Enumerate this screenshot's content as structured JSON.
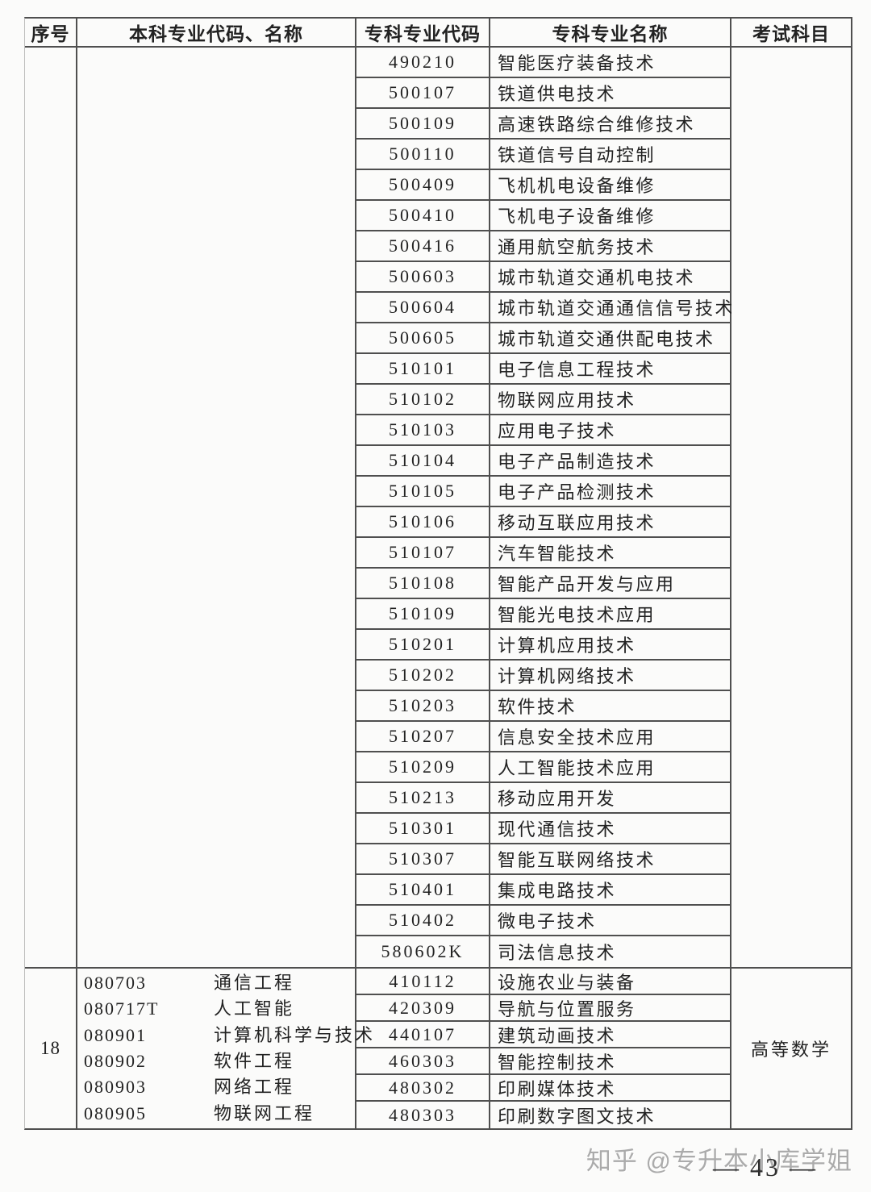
{
  "colors": {
    "bg": "#fbfbfa",
    "border": "#4f4f4f",
    "text": "#222222",
    "watermark": "#ababab",
    "pageno": "#2e2e2e"
  },
  "table": {
    "headers": [
      "序号",
      "本科专业代码、名称",
      "专科专业代码",
      "专科专业名称",
      "考试科目"
    ]
  },
  "sections": [
    {
      "serial": "",
      "exam_subject": "",
      "undergraduate_majors": [],
      "rows": [
        {
          "code": "490210",
          "name": "智能医疗装备技术"
        },
        {
          "code": "500107",
          "name": "铁道供电技术"
        },
        {
          "code": "500109",
          "name": "高速铁路综合维修技术"
        },
        {
          "code": "500110",
          "name": "铁道信号自动控制"
        },
        {
          "code": "500409",
          "name": "飞机机电设备维修"
        },
        {
          "code": "500410",
          "name": "飞机电子设备维修"
        },
        {
          "code": "500416",
          "name": "通用航空航务技术"
        },
        {
          "code": "500603",
          "name": "城市轨道交通机电技术"
        },
        {
          "code": "500604",
          "name": "城市轨道交通通信信号技术"
        },
        {
          "code": "500605",
          "name": "城市轨道交通供配电技术"
        },
        {
          "code": "510101",
          "name": "电子信息工程技术"
        },
        {
          "code": "510102",
          "name": "物联网应用技术"
        },
        {
          "code": "510103",
          "name": "应用电子技术"
        },
        {
          "code": "510104",
          "name": "电子产品制造技术"
        },
        {
          "code": "510105",
          "name": "电子产品检测技术"
        },
        {
          "code": "510106",
          "name": "移动互联应用技术"
        },
        {
          "code": "510107",
          "name": "汽车智能技术"
        },
        {
          "code": "510108",
          "name": "智能产品开发与应用"
        },
        {
          "code": "510109",
          "name": "智能光电技术应用"
        },
        {
          "code": "510201",
          "name": "计算机应用技术"
        },
        {
          "code": "510202",
          "name": "计算机网络技术"
        },
        {
          "code": "510203",
          "name": "软件技术"
        },
        {
          "code": "510207",
          "name": "信息安全技术应用"
        },
        {
          "code": "510209",
          "name": "人工智能技术应用"
        },
        {
          "code": "510213",
          "name": "移动应用开发"
        },
        {
          "code": "510301",
          "name": "现代通信技术"
        },
        {
          "code": "510307",
          "name": "智能互联网络技术"
        },
        {
          "code": "510401",
          "name": "集成电路技术"
        },
        {
          "code": "510402",
          "name": "微电子技术"
        },
        {
          "code": "580602K",
          "name": "司法信息技术"
        }
      ]
    },
    {
      "serial": "18",
      "exam_subject": "高等数学",
      "undergraduate_majors": [
        {
          "code": "080703",
          "name": "通信工程"
        },
        {
          "code": "080717T",
          "name": "人工智能"
        },
        {
          "code": "080901",
          "name": "计算机科学与技术"
        },
        {
          "code": "080902",
          "name": "软件工程"
        },
        {
          "code": "080903",
          "name": "网络工程"
        },
        {
          "code": "080905",
          "name": "物联网工程"
        }
      ],
      "rows": [
        {
          "code": "410112",
          "name": "设施农业与装备"
        },
        {
          "code": "420309",
          "name": "导航与位置服务"
        },
        {
          "code": "440107",
          "name": "建筑动画技术"
        },
        {
          "code": "460303",
          "name": "智能控制技术"
        },
        {
          "code": "480302",
          "name": "印刷媒体技术"
        },
        {
          "code": "480303",
          "name": "印刷数字图文技术"
        }
      ]
    }
  ],
  "footer": {
    "watermark": "知乎 @专升本小库学姐",
    "page_number_display": "— 43 —"
  }
}
